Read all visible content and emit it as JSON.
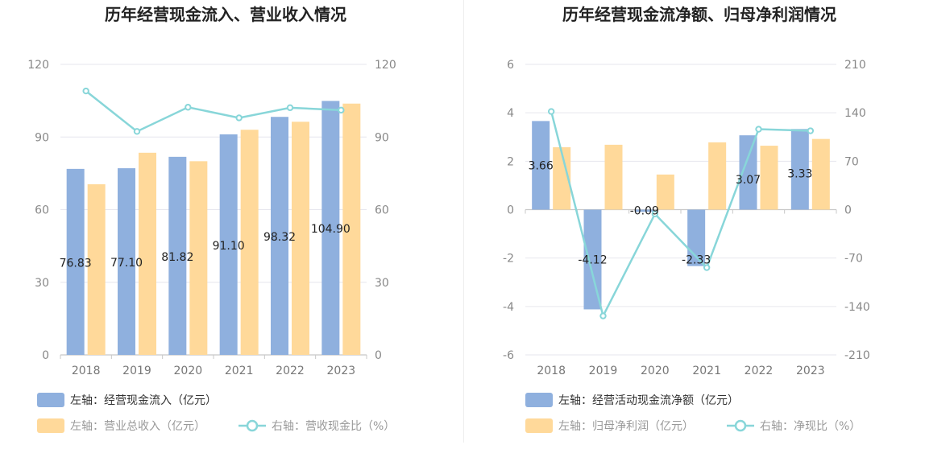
{
  "colors": {
    "bar_primary": "#8fb0de",
    "bar_secondary": "#ffd99a",
    "line": "#88d6d9",
    "grid": "#e6e6ee",
    "axis": "#c8c8c8",
    "legend_dark": "#333333",
    "legend_light": "#999999"
  },
  "chart_data": [
    {
      "type": "bar",
      "title": "历年经营现金流入、营业收入情况",
      "categories": [
        "2018",
        "2019",
        "2020",
        "2021",
        "2022",
        "2023"
      ],
      "left_axis": {
        "min": 0,
        "max": 120,
        "ticks": [
          "120",
          "90",
          "60",
          "30",
          "0"
        ]
      },
      "right_axis": {
        "min": 0,
        "max": 120,
        "ticks": [
          "120",
          "90",
          "60",
          "30",
          "0"
        ]
      },
      "series": [
        {
          "name": "左轴：经营现金流入（亿元）",
          "axis": "left",
          "kind": "bar",
          "values": [
            76.83,
            77.1,
            81.82,
            91.1,
            98.32,
            104.9
          ],
          "labels": [
            "76.83",
            "77.10",
            "81.82",
            "91.10",
            "98.32",
            "104.90"
          ]
        },
        {
          "name": "左轴：营业总收入（亿元）",
          "axis": "left",
          "kind": "bar",
          "values": [
            70.5,
            83.5,
            80.0,
            93.0,
            96.3,
            103.8
          ]
        },
        {
          "name": "右轴：营收现金比（%）",
          "axis": "right",
          "kind": "line",
          "values": [
            109.0,
            92.3,
            102.3,
            97.9,
            102.1,
            101.1
          ]
        }
      ],
      "grid": true,
      "legend_position": "bottom-left"
    },
    {
      "type": "bar",
      "title": "历年经营现金流净额、归母净利润情况",
      "categories": [
        "2018",
        "2019",
        "2020",
        "2021",
        "2022",
        "2023"
      ],
      "left_axis": {
        "min": -6,
        "max": 6,
        "ticks": [
          "6",
          "4",
          "2",
          "0",
          "-2",
          "-4",
          "-6"
        ]
      },
      "right_axis": {
        "min": -210,
        "max": 210,
        "ticks": [
          "210",
          "140",
          "70",
          "0",
          "-70",
          "-140",
          "-210"
        ]
      },
      "series": [
        {
          "name": "左轴：经营活动现金流净额（亿元）",
          "axis": "left",
          "kind": "bar",
          "values": [
            3.66,
            -4.12,
            -0.09,
            -2.33,
            3.07,
            3.33
          ],
          "labels": [
            "3.66",
            "-4.12",
            "-0.09",
            "-2.33",
            "3.07",
            "3.33"
          ]
        },
        {
          "name": "左轴：归母净利润（亿元）",
          "axis": "left",
          "kind": "bar",
          "values": [
            2.58,
            2.68,
            1.45,
            2.78,
            2.64,
            2.92
          ]
        },
        {
          "name": "右轴：净现比（%）",
          "axis": "right",
          "kind": "line",
          "values": [
            141.9,
            -153.7,
            -6.2,
            -83.8,
            116.3,
            114.0
          ]
        }
      ],
      "grid": true,
      "legend_position": "bottom-left"
    }
  ]
}
